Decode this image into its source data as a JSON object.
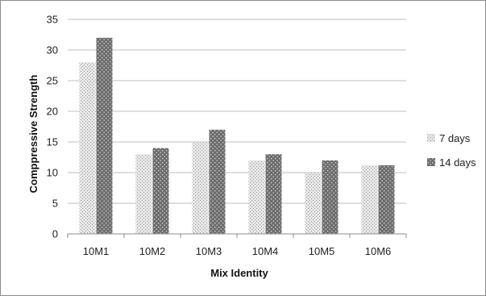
{
  "chart_data": {
    "type": "bar",
    "title": "",
    "xlabel": "Mix Identity",
    "ylabel": "Comppressive Strength",
    "categories": [
      "10M1",
      "10M2",
      "10M3",
      "10M4",
      "10M5",
      "10M6"
    ],
    "series": [
      {
        "name": "7 days",
        "values": [
          28,
          13,
          15,
          12,
          10,
          11.2
        ],
        "color": "#d9d9d9",
        "pattern": "light-dots"
      },
      {
        "name": "14 days",
        "values": [
          32,
          14,
          17,
          13,
          12,
          11.2
        ],
        "color": "#7f7f7f",
        "pattern": "dark-dots"
      }
    ],
    "ylim": [
      0,
      35
    ],
    "yticks": [
      0,
      5,
      10,
      15,
      20,
      25,
      30,
      35
    ],
    "grid": "horizontal",
    "legend_position": "right"
  }
}
